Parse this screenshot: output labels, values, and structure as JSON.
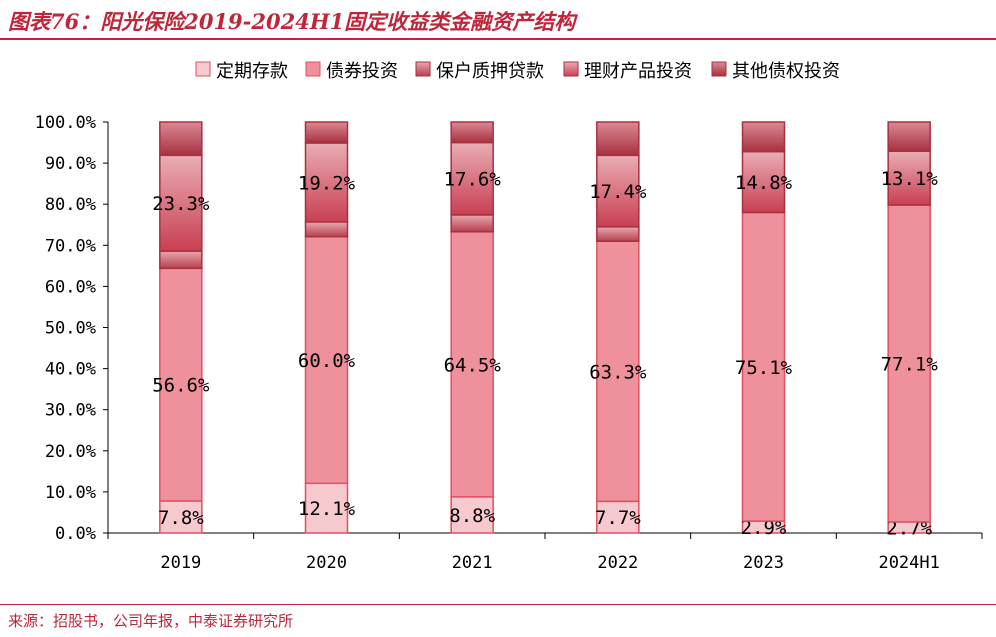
{
  "title": "图表76：阳光保险2019-2024H1固定收益类金融资产结构",
  "source": "来源：招股书，公司年报，中泰证券研究所",
  "chart_data": {
    "type": "bar",
    "stacked": true,
    "categories": [
      "2019",
      "2020",
      "2021",
      "2022",
      "2023",
      "2024H1"
    ],
    "ylim": [
      0,
      100
    ],
    "yticks": [
      "0.0%",
      "10.0%",
      "20.0%",
      "30.0%",
      "40.0%",
      "50.0%",
      "60.0%",
      "70.0%",
      "80.0%",
      "90.0%",
      "100.0%"
    ],
    "legend_position": "top",
    "series": [
      {
        "name": "定期存款",
        "values": [
          7.8,
          12.1,
          8.8,
          7.7,
          2.9,
          2.7
        ],
        "labels": [
          "7.8%",
          "12.1%",
          "8.8%",
          "7.7%",
          "2.9%",
          "2.7%"
        ],
        "color": "#f6c9cf"
      },
      {
        "name": "债券投资",
        "values": [
          56.6,
          60.0,
          64.5,
          63.3,
          75.1,
          77.1
        ],
        "labels": [
          "56.6%",
          "60.0%",
          "64.5%",
          "63.3%",
          "75.1%",
          "77.1%"
        ],
        "color": "#ee919c"
      },
      {
        "name": "保户质押贷款",
        "values": [
          4.2,
          3.6,
          4.1,
          3.5,
          0,
          0
        ],
        "color": "#c94f5f"
      },
      {
        "name": "理财产品投资",
        "values": [
          23.3,
          19.2,
          17.6,
          17.4,
          14.8,
          13.1
        ],
        "labels": [
          "23.3%",
          "19.2%",
          "17.6%",
          "17.4%",
          "14.8%",
          "13.1%"
        ],
        "color": "#d24a5c"
      },
      {
        "name": "其他债权投资",
        "values": [
          8.1,
          5.1,
          5.0,
          8.1,
          7.2,
          7.1
        ],
        "color": "#b23a4c"
      }
    ]
  }
}
